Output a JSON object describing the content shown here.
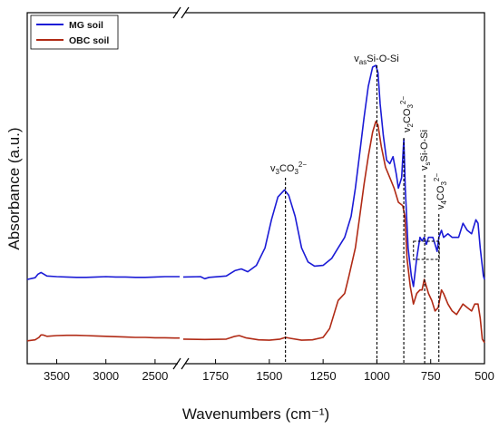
{
  "chart_data": {
    "type": "line",
    "xlabel": "Wavenumbers (cm⁻¹)",
    "ylabel": "Absorbance (a.u.)",
    "x_axis": {
      "reversed": true,
      "broken": true,
      "segments": [
        [
          3800,
          2250
        ],
        [
          1900,
          500
        ]
      ],
      "ticks": [
        {
          "value": 3500,
          "label": "3500"
        },
        {
          "value": 3000,
          "label": "3000"
        },
        {
          "value": 2500,
          "label": "2500"
        },
        {
          "value": 1750,
          "label": "1750"
        },
        {
          "value": 1500,
          "label": "1500"
        },
        {
          "value": 1250,
          "label": "1250"
        },
        {
          "value": 1000,
          "label": "1000"
        },
        {
          "value": 750,
          "label": "750"
        },
        {
          "value": 500,
          "label": "500"
        }
      ]
    },
    "ylim": [
      0,
      1
    ],
    "legend": {
      "position": "top-left"
    },
    "series": [
      {
        "name": "MG soil",
        "color": "#1b1bd6",
        "points": [
          [
            3800,
            0.24
          ],
          [
            3720,
            0.245
          ],
          [
            3690,
            0.255
          ],
          [
            3660,
            0.26
          ],
          [
            3630,
            0.255
          ],
          [
            3600,
            0.25
          ],
          [
            3500,
            0.248
          ],
          [
            3400,
            0.247
          ],
          [
            3300,
            0.246
          ],
          [
            3200,
            0.246
          ],
          [
            3100,
            0.247
          ],
          [
            3000,
            0.248
          ],
          [
            2900,
            0.247
          ],
          [
            2800,
            0.247
          ],
          [
            2700,
            0.246
          ],
          [
            2600,
            0.246
          ],
          [
            2500,
            0.247
          ],
          [
            2400,
            0.248
          ],
          [
            2300,
            0.248
          ],
          [
            2250,
            0.248
          ],
          [
            1900,
            0.247
          ],
          [
            1820,
            0.248
          ],
          [
            1800,
            0.242
          ],
          [
            1780,
            0.246
          ],
          [
            1700,
            0.25
          ],
          [
            1660,
            0.265
          ],
          [
            1630,
            0.27
          ],
          [
            1600,
            0.262
          ],
          [
            1560,
            0.28
          ],
          [
            1520,
            0.33
          ],
          [
            1490,
            0.41
          ],
          [
            1460,
            0.475
          ],
          [
            1430,
            0.495
          ],
          [
            1410,
            0.48
          ],
          [
            1380,
            0.42
          ],
          [
            1350,
            0.33
          ],
          [
            1320,
            0.29
          ],
          [
            1290,
            0.278
          ],
          [
            1250,
            0.28
          ],
          [
            1210,
            0.3
          ],
          [
            1180,
            0.33
          ],
          [
            1150,
            0.36
          ],
          [
            1120,
            0.42
          ],
          [
            1100,
            0.5
          ],
          [
            1080,
            0.6
          ],
          [
            1060,
            0.7
          ],
          [
            1040,
            0.79
          ],
          [
            1020,
            0.845
          ],
          [
            1005,
            0.85
          ],
          [
            995,
            0.83
          ],
          [
            985,
            0.74
          ],
          [
            970,
            0.65
          ],
          [
            955,
            0.58
          ],
          [
            940,
            0.57
          ],
          [
            925,
            0.59
          ],
          [
            910,
            0.54
          ],
          [
            900,
            0.5
          ],
          [
            885,
            0.53
          ],
          [
            875,
            0.64
          ],
          [
            868,
            0.5
          ],
          [
            855,
            0.33
          ],
          [
            840,
            0.25
          ],
          [
            830,
            0.22
          ],
          [
            815,
            0.3
          ],
          [
            800,
            0.36
          ],
          [
            790,
            0.35
          ],
          [
            780,
            0.36
          ],
          [
            770,
            0.34
          ],
          [
            760,
            0.36
          ],
          [
            740,
            0.36
          ],
          [
            730,
            0.34
          ],
          [
            720,
            0.32
          ],
          [
            712,
            0.36
          ],
          [
            700,
            0.38
          ],
          [
            690,
            0.36
          ],
          [
            670,
            0.37
          ],
          [
            650,
            0.36
          ],
          [
            620,
            0.36
          ],
          [
            600,
            0.4
          ],
          [
            580,
            0.38
          ],
          [
            560,
            0.37
          ],
          [
            550,
            0.39
          ],
          [
            540,
            0.41
          ],
          [
            530,
            0.4
          ],
          [
            520,
            0.33
          ],
          [
            505,
            0.25
          ],
          [
            500,
            0.24
          ]
        ]
      },
      {
        "name": "OBC soil",
        "color": "#b02a15",
        "points": [
          [
            3800,
            0.065
          ],
          [
            3720,
            0.068
          ],
          [
            3680,
            0.075
          ],
          [
            3660,
            0.082
          ],
          [
            3640,
            0.082
          ],
          [
            3600,
            0.078
          ],
          [
            3500,
            0.08
          ],
          [
            3400,
            0.081
          ],
          [
            3300,
            0.081
          ],
          [
            3200,
            0.08
          ],
          [
            3100,
            0.079
          ],
          [
            3000,
            0.078
          ],
          [
            2900,
            0.077
          ],
          [
            2800,
            0.076
          ],
          [
            2700,
            0.075
          ],
          [
            2600,
            0.075
          ],
          [
            2500,
            0.074
          ],
          [
            2400,
            0.074
          ],
          [
            2300,
            0.073
          ],
          [
            2250,
            0.073
          ],
          [
            1900,
            0.07
          ],
          [
            1800,
            0.069
          ],
          [
            1700,
            0.07
          ],
          [
            1660,
            0.078
          ],
          [
            1640,
            0.08
          ],
          [
            1610,
            0.074
          ],
          [
            1550,
            0.068
          ],
          [
            1500,
            0.067
          ],
          [
            1450,
            0.07
          ],
          [
            1425,
            0.075
          ],
          [
            1400,
            0.072
          ],
          [
            1350,
            0.067
          ],
          [
            1300,
            0.068
          ],
          [
            1250,
            0.075
          ],
          [
            1220,
            0.1
          ],
          [
            1200,
            0.14
          ],
          [
            1180,
            0.18
          ],
          [
            1150,
            0.2
          ],
          [
            1130,
            0.25
          ],
          [
            1100,
            0.33
          ],
          [
            1080,
            0.42
          ],
          [
            1060,
            0.51
          ],
          [
            1040,
            0.59
          ],
          [
            1020,
            0.66
          ],
          [
            1005,
            0.69
          ],
          [
            995,
            0.68
          ],
          [
            980,
            0.62
          ],
          [
            960,
            0.56
          ],
          [
            940,
            0.53
          ],
          [
            920,
            0.5
          ],
          [
            900,
            0.46
          ],
          [
            880,
            0.45
          ],
          [
            870,
            0.42
          ],
          [
            860,
            0.3
          ],
          [
            845,
            0.22
          ],
          [
            830,
            0.17
          ],
          [
            815,
            0.2
          ],
          [
            800,
            0.21
          ],
          [
            790,
            0.21
          ],
          [
            780,
            0.24
          ],
          [
            770,
            0.22
          ],
          [
            760,
            0.2
          ],
          [
            745,
            0.18
          ],
          [
            730,
            0.15
          ],
          [
            715,
            0.16
          ],
          [
            700,
            0.21
          ],
          [
            690,
            0.2
          ],
          [
            670,
            0.17
          ],
          [
            650,
            0.15
          ],
          [
            630,
            0.14
          ],
          [
            600,
            0.17
          ],
          [
            580,
            0.16
          ],
          [
            560,
            0.15
          ],
          [
            545,
            0.17
          ],
          [
            530,
            0.17
          ],
          [
            520,
            0.13
          ],
          [
            510,
            0.07
          ],
          [
            500,
            0.06
          ]
        ]
      }
    ],
    "annotations": [
      {
        "name": "v3-co3",
        "main": "v",
        "sub": "3",
        "rest": "CO",
        "rest_sub": "3",
        "sup": "2−",
        "x": 1425,
        "vertical": false
      },
      {
        "name": "vas-si-o-si",
        "main": "v",
        "sub": "as",
        "rest": "Si-O-Si",
        "x": 1000,
        "vertical": false
      },
      {
        "name": "v2-co3",
        "main": "v",
        "sub": "2",
        "rest": "CO",
        "rest_sub": "3",
        "sup": "2−",
        "x": 875,
        "vertical": true
      },
      {
        "name": "vs-si-o-si",
        "main": "v",
        "sub": "s",
        "rest": "Si-O-Si",
        "x": 778,
        "vertical": true
      },
      {
        "name": "v4-co3",
        "main": "v",
        "sub": "4",
        "rest": "CO",
        "rest_sub": "3",
        "sup": "2−",
        "x": 712,
        "vertical": true
      }
    ],
    "highlight_box": {
      "x_range": [
        830,
        710
      ]
    }
  }
}
